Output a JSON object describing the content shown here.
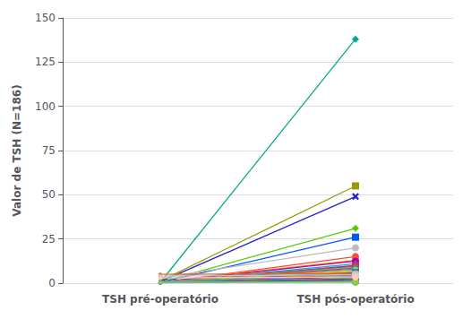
{
  "chart_data": {
    "type": "line",
    "categories": [
      "TSH pré-operatório",
      "TSH pós-operatório"
    ],
    "ylabel": "Valor de TSH (N=186)",
    "ylim": [
      0,
      150
    ],
    "yticks": [
      0,
      25,
      50,
      75,
      100,
      125,
      150
    ],
    "grid": true,
    "series": [
      {
        "color": "#00AA88",
        "marker": "diamond",
        "values": [
          0.5,
          138.0
        ]
      },
      {
        "color": "#999900",
        "marker": "square",
        "values": [
          1.2,
          55.0
        ]
      },
      {
        "color": "#2222CC",
        "marker": "x",
        "values": [
          0.8,
          49.0
        ]
      },
      {
        "color": "#55CC00",
        "marker": "diamond",
        "values": [
          0.6,
          31.0
        ]
      },
      {
        "color": "#0055FF",
        "marker": "square",
        "values": [
          0.4,
          26.0
        ]
      },
      {
        "color": "#BBBBBB",
        "marker": "circle",
        "values": [
          3.0,
          20.0
        ]
      },
      {
        "color": "#FF4444",
        "marker": "circle",
        "values": [
          0.3,
          15.0
        ]
      },
      {
        "color": "#FF8800",
        "marker": "circle",
        "values": [
          0.7,
          13.0
        ]
      },
      {
        "color": "#AA00AA",
        "marker": "circle",
        "values": [
          0.5,
          12.5
        ]
      },
      {
        "color": "#00AAFF",
        "marker": "triangle",
        "values": [
          0.4,
          11.0
        ]
      },
      {
        "color": "#FF00AA",
        "marker": "square",
        "values": [
          0.3,
          10.0
        ]
      },
      {
        "color": "#886600",
        "marker": "circle",
        "values": [
          0.6,
          9.5
        ]
      },
      {
        "color": "#44CCCC",
        "marker": "diamond",
        "values": [
          0.5,
          9.0
        ]
      },
      {
        "color": "#CC4400",
        "marker": "square",
        "values": [
          0.4,
          8.5
        ]
      },
      {
        "color": "#4488FF",
        "marker": "circle",
        "values": [
          0.2,
          8.0
        ]
      },
      {
        "color": "#FF6688",
        "marker": "triangle",
        "values": [
          0.6,
          7.5
        ]
      },
      {
        "color": "#66FF44",
        "marker": "circle",
        "values": [
          0.3,
          7.0
        ]
      },
      {
        "color": "#FFAA00",
        "marker": "diamond",
        "values": [
          0.4,
          6.5
        ]
      },
      {
        "color": "#0088AA",
        "marker": "square",
        "values": [
          0.5,
          6.0
        ]
      },
      {
        "color": "#CC00CC",
        "marker": "circle",
        "values": [
          0.3,
          5.5
        ]
      },
      {
        "color": "#AABB00",
        "marker": "triangle",
        "values": [
          0.6,
          5.0
        ]
      },
      {
        "color": "#FF2200",
        "marker": "circle",
        "values": [
          0.4,
          4.5
        ]
      },
      {
        "color": "#00CCFF",
        "marker": "square",
        "values": [
          0.7,
          4.0
        ]
      },
      {
        "color": "#8800FF",
        "marker": "diamond",
        "values": [
          0.3,
          3.5
        ]
      },
      {
        "color": "#FF8866",
        "marker": "circle",
        "values": [
          0.5,
          3.0
        ]
      },
      {
        "color": "#008866",
        "marker": "triangle",
        "values": [
          0.4,
          2.5
        ]
      },
      {
        "color": "#996600",
        "marker": "circle",
        "values": [
          0.2,
          2.0
        ]
      },
      {
        "color": "#0066FF",
        "marker": "square",
        "values": [
          0.3,
          1.5
        ]
      },
      {
        "color": "#FF44CC",
        "marker": "circle",
        "values": [
          0.6,
          1.0
        ]
      },
      {
        "color": "#44AAFF",
        "marker": "diamond",
        "values": [
          0.5,
          0.8
        ]
      },
      {
        "color": "#88CC44",
        "marker": "circle",
        "values": [
          0.4,
          0.5
        ]
      },
      {
        "color": "#FF6600",
        "marker": "circle",
        "values": [
          5.0,
          5.5
        ]
      },
      {
        "color": "#AACCFF",
        "marker": "square",
        "values": [
          4.0,
          4.8
        ]
      },
      {
        "color": "#FFCCAA",
        "marker": "circle",
        "values": [
          3.0,
          3.5
        ]
      }
    ]
  }
}
